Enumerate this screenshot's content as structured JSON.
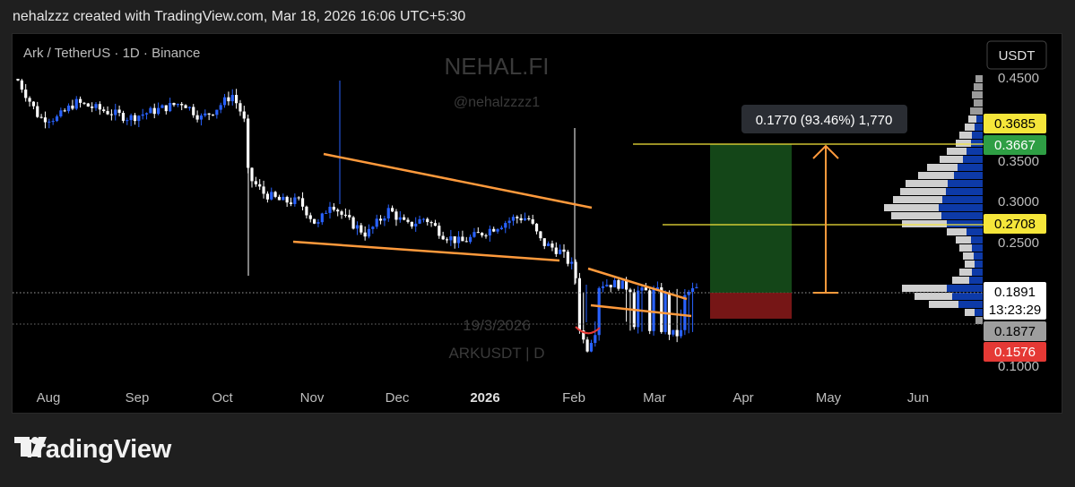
{
  "header": {
    "text": "nehalzzz created with TradingView.com, Mar 18, 2026 16:06 UTC+5:30"
  },
  "symbol": {
    "label": "Ark / TetherUS · 1D · Binance"
  },
  "watermark": {
    "name": "NEHAL.FI",
    "handle": "@nehalzzzz1",
    "date": "19/3/2026",
    "ticker": "ARKUSDT | D"
  },
  "currency_button": "USDT",
  "footer": {
    "brand": "TradingView"
  },
  "colors": {
    "up": "#2962ff",
    "down": "#ffffff",
    "trendline": "#ff9a3c",
    "target_line": "#f5e63a",
    "profit": "#1b5e20",
    "loss": "#8b1a1a"
  },
  "chart_data": {
    "type": "candlestick",
    "symbol": "ARKUSDT",
    "timeframe": "1D",
    "x_ticks": [
      "Aug",
      "Sep",
      "Oct",
      "Nov",
      "Dec",
      "2026",
      "Feb",
      "Mar",
      "Apr",
      "May",
      "Jun"
    ],
    "y_ticks": [
      "0.4500",
      "0.3500",
      "0.3000",
      "0.2500",
      "0.1000"
    ],
    "price_tags": [
      {
        "value": "0.3685",
        "style": "yellow"
      },
      {
        "value": "0.3667",
        "style": "green"
      },
      {
        "value": "0.2708",
        "style": "yellow"
      },
      {
        "value": "0.1891",
        "style": "white",
        "countdown": "13:23:29"
      },
      {
        "value": "0.1877",
        "style": "gray"
      },
      {
        "value": "0.1576",
        "style": "red"
      }
    ],
    "current_price": 0.1891,
    "measure_label": "0.1770 (93.46%) 1,770",
    "position": {
      "entry": 0.1891,
      "target": 0.3667,
      "stop": 0.1576
    },
    "horizontal_levels": [
      0.3667,
      0.2708
    ],
    "patterns": [
      "falling wedge",
      "descending channel"
    ]
  }
}
